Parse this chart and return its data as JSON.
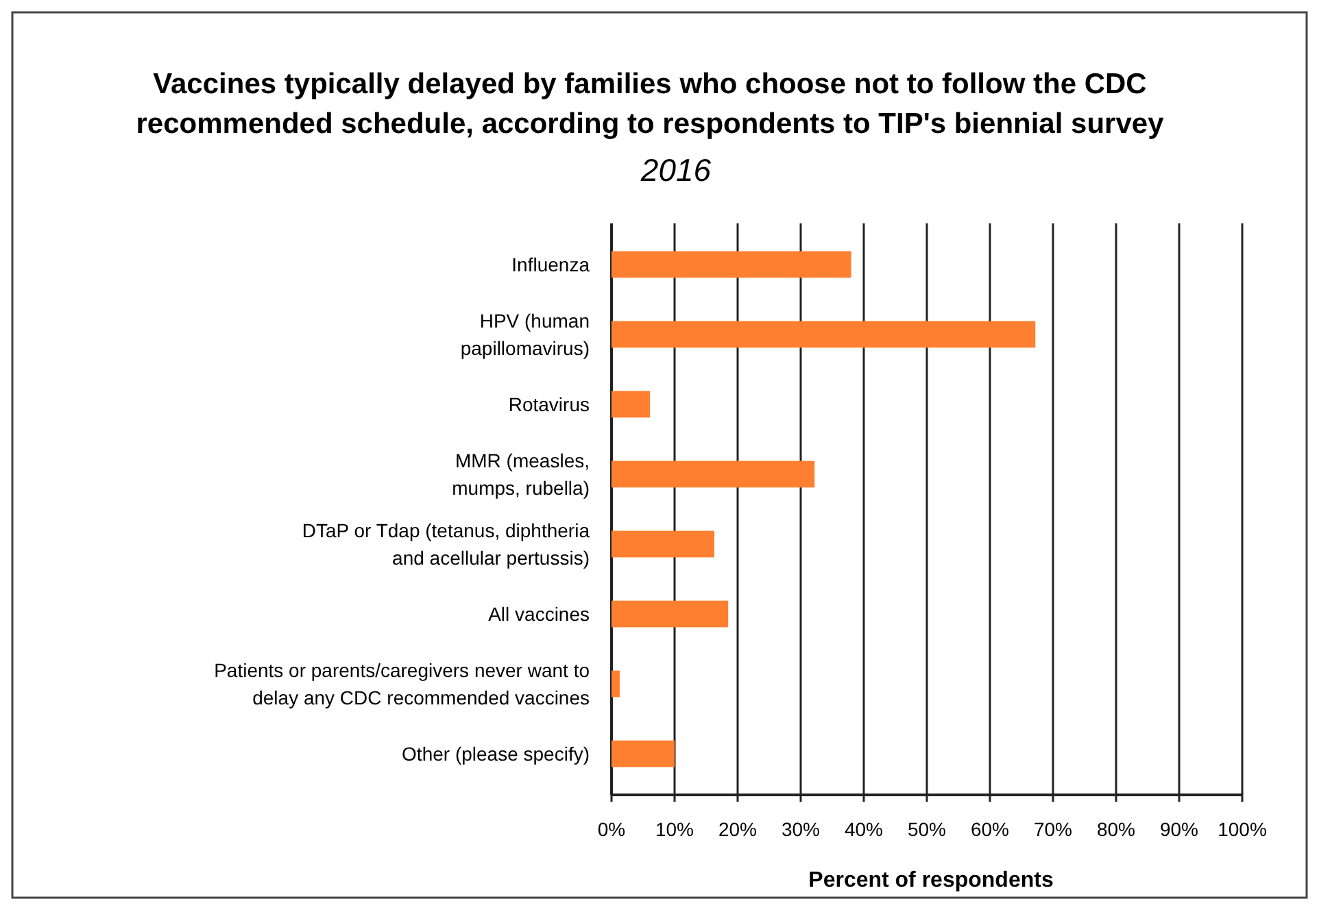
{
  "chart_data": {
    "type": "bar",
    "orientation": "horizontal",
    "title": "Vaccines typically delayed by families who choose not to follow the CDC recommended schedule, according to respondents to TIP's biennial survey",
    "subtitle": "2016",
    "xlabel": "Percent of respondents",
    "categories": [
      "Influenza",
      "HPV (human papillomavirus)",
      "Rotavirus",
      "MMR (measles, mumps, rubella)",
      "DTaP or Tdap (tetanus, diphtheria and acellular pertussis)",
      "All vaccines",
      "Patients or parents/caregivers never want to delay any CDC recommended vaccines",
      "Other (please specify)"
    ],
    "values": [
      38,
      67.2,
      6.1,
      32.2,
      16.3,
      18.5,
      1.3,
      10
    ],
    "color": "#ff7f30",
    "xlim": [
      0,
      100
    ],
    "xticks": [
      {
        "value": 0,
        "label": "0%"
      },
      {
        "value": 10,
        "label": "10%"
      },
      {
        "value": 20,
        "label": "20%"
      },
      {
        "value": 30,
        "label": "30%"
      },
      {
        "value": 40,
        "label": "40%"
      },
      {
        "value": 50,
        "label": "50%"
      },
      {
        "value": 60,
        "label": "60%"
      },
      {
        "value": 70,
        "label": "70%"
      },
      {
        "value": 80,
        "label": "80%"
      },
      {
        "value": 90,
        "label": "90%"
      },
      {
        "value": 100,
        "label": "100%"
      }
    ],
    "grid": "x"
  }
}
